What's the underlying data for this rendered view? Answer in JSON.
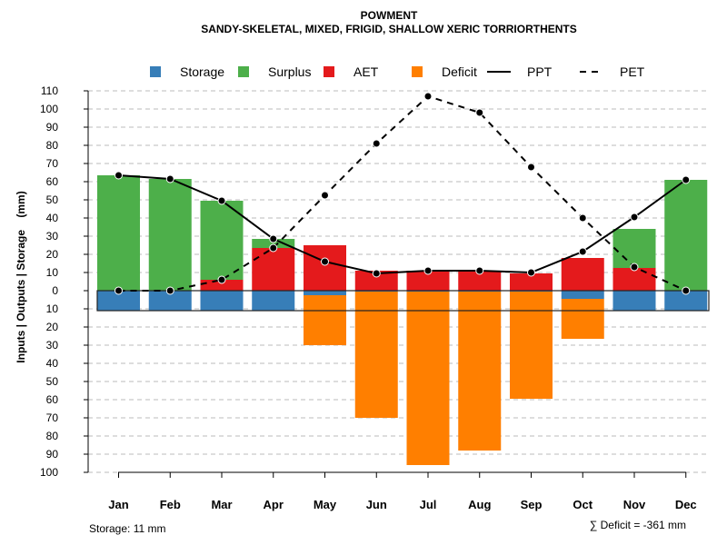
{
  "chart_data": {
    "type": "bar",
    "title": "POWMENT",
    "subtitle": "SANDY-SKELETAL, MIXED, FRIGID, SHALLOW XERIC TORRIORTHENTS",
    "ylabel": "Inputs | Outputs | Storage    (mm)",
    "xlabel": "",
    "ylim": [
      -100,
      110
    ],
    "yticks": [
      110,
      100,
      90,
      80,
      70,
      60,
      50,
      40,
      30,
      20,
      10,
      0,
      -10,
      -20,
      -30,
      -40,
      -50,
      -60,
      -70,
      -80,
      -90,
      -100
    ],
    "ytick_labels": [
      "110",
      "100",
      "90",
      "80",
      "70",
      "60",
      "50",
      "40",
      "30",
      "20",
      "10",
      "0",
      "10",
      "20",
      "30",
      "40",
      "50",
      "60",
      "70",
      "80",
      "90",
      "100"
    ],
    "grid": true,
    "legend_position": "top",
    "categories": [
      "Jan",
      "Feb",
      "Mar",
      "Apr",
      "May",
      "Jun",
      "Jul",
      "Aug",
      "Sep",
      "Oct",
      "Nov",
      "Dec"
    ],
    "legend": [
      {
        "name": "Storage",
        "kind": "box",
        "color": "#377EB8"
      },
      {
        "name": "Surplus",
        "kind": "box",
        "color": "#4DAF4A"
      },
      {
        "name": "AET",
        "kind": "box",
        "color": "#E41A1C"
      },
      {
        "name": "Deficit",
        "kind": "box",
        "color": "#FF7F00"
      },
      {
        "name": "PPT",
        "kind": "solid"
      },
      {
        "name": "PET",
        "kind": "dashed"
      }
    ],
    "series": [
      {
        "name": "Storage",
        "values": [
          11,
          11,
          11,
          11,
          2.5,
          0.5,
          0.5,
          0.5,
          0.5,
          4.5,
          11,
          11
        ]
      },
      {
        "name": "Surplus",
        "values": [
          63.5,
          61.5,
          43.5,
          5,
          0,
          0,
          0,
          0,
          0,
          0,
          21.5,
          61
        ]
      },
      {
        "name": "AET",
        "values": [
          0,
          0,
          6,
          23.5,
          25,
          11,
          11,
          11,
          9.5,
          18,
          12.5,
          0
        ]
      },
      {
        "name": "Deficit",
        "values": [
          0,
          0,
          0,
          0,
          -27.5,
          -69.5,
          -95.5,
          -87.5,
          -59,
          -22,
          0,
          0
        ]
      },
      {
        "name": "PPT",
        "values": [
          63.5,
          61.5,
          49.5,
          28.5,
          16,
          9.5,
          11,
          11,
          10,
          21.5,
          40.5,
          61
        ]
      },
      {
        "name": "PET",
        "values": [
          0,
          0,
          6,
          23.5,
          52.5,
          81,
          107,
          98,
          68,
          40,
          13,
          0
        ]
      }
    ],
    "storage_capacity": 11,
    "annotations": {
      "storage": "Storage: 11 mm",
      "deficit": "∑ Deficit = -361 mm"
    }
  }
}
